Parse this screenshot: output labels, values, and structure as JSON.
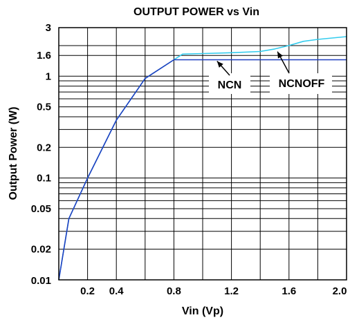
{
  "chart_data": {
    "type": "line",
    "title": "OUTPUT POWER vs Vin",
    "xlabel": "Vin (Vp)",
    "ylabel": "Output Power (W)",
    "xlim": [
      0,
      2.0
    ],
    "ylim": [
      0.01,
      3
    ],
    "yscale": "log",
    "grid": true,
    "x_ticks": [
      0.2,
      0.4,
      0.8,
      1.2,
      1.6,
      2.0
    ],
    "x_tick_labels": [
      "0.2",
      "0.4",
      "0.8",
      "1.2",
      "1.6",
      "2.0"
    ],
    "y_ticks": [
      0.01,
      0.02,
      0.05,
      0.1,
      0.2,
      0.5,
      1,
      1.6,
      3
    ],
    "y_tick_labels": [
      "0.01",
      "0.02",
      "0.05",
      "0.1",
      "0.2",
      "0.5",
      "1",
      "1.6",
      "3"
    ],
    "series": [
      {
        "name": "NCN",
        "color": "#1f3fbf",
        "x": [
          0.0,
          0.07,
          0.2,
          0.4,
          0.6,
          0.8,
          1.0,
          1.2,
          1.4,
          1.6,
          1.8,
          2.0
        ],
        "y": [
          0.01,
          0.04,
          0.1,
          0.37,
          0.95,
          1.45,
          1.45,
          1.45,
          1.45,
          1.45,
          1.45,
          1.45
        ]
      },
      {
        "name": "NCNOFF",
        "color": "#33ccee",
        "x": [
          0.0,
          0.07,
          0.2,
          0.4,
          0.6,
          0.8,
          0.86,
          1.0,
          1.2,
          1.4,
          1.5,
          1.6,
          1.7,
          1.8,
          2.0
        ],
        "y": [
          0.01,
          0.04,
          0.1,
          0.37,
          0.95,
          1.45,
          1.65,
          1.67,
          1.7,
          1.75,
          1.85,
          2.0,
          2.2,
          2.3,
          2.45
        ]
      }
    ],
    "annotations": [
      {
        "text": "NCN",
        "arrow_to": [
          1.1,
          1.45
        ]
      },
      {
        "text": "NCNOFF",
        "arrow_to": [
          1.52,
          1.8
        ]
      }
    ]
  }
}
